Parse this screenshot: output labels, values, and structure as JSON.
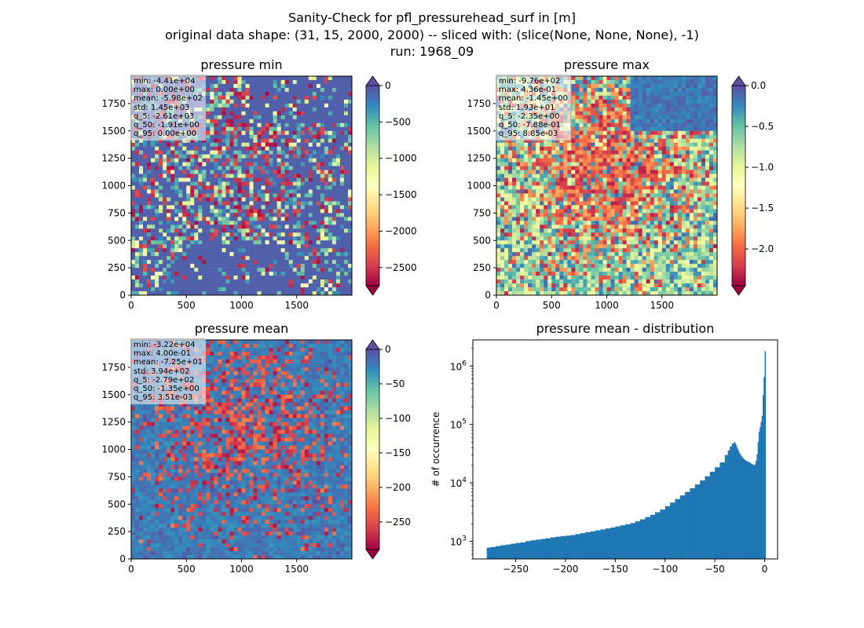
{
  "suptitle": {
    "line1": "Sanity-Check for pfl_pressurehead_surf in [m]",
    "line2": "original data shape: (31, 15, 2000, 2000) -- sliced with: (slice(None, None, None), -1)",
    "line3": "run: 1968_09"
  },
  "colormap": "Spectral",
  "chart_data": [
    {
      "type": "heatmap",
      "title": "pressure min",
      "xlim": [
        0,
        2000
      ],
      "ylim": [
        0,
        2000
      ],
      "xticks": [
        0,
        500,
        1000,
        1500
      ],
      "yticks": [
        0,
        250,
        500,
        750,
        1000,
        1250,
        1500,
        1750
      ],
      "colorbar": {
        "vmin": -2750,
        "vmax": 0,
        "ticks": [
          0,
          -500,
          -1000,
          -1500,
          -2000,
          -2500
        ],
        "tick_labels": [
          "0",
          "−500",
          "−1000",
          "−1500",
          "−2000",
          "−2500"
        ],
        "extend": "both"
      },
      "stats": [
        "min: -4.41e+04",
        "max: 0.00e+00",
        "mean: -5.98e+02",
        "std: 1.45e+03",
        "q_5: -2.61e+03",
        "q_50: -1.91e+00",
        "q_95: 0.00e+00"
      ]
    },
    {
      "type": "heatmap",
      "title": "pressure max",
      "xlim": [
        0,
        2000
      ],
      "ylim": [
        0,
        2000
      ],
      "xticks": [
        0,
        500,
        1000,
        1500
      ],
      "yticks": [
        0,
        250,
        500,
        750,
        1000,
        1250,
        1500,
        1750
      ],
      "colorbar": {
        "vmin": -2.45,
        "vmax": 0,
        "ticks": [
          0,
          -0.5,
          -1.0,
          -1.5,
          -2.0
        ],
        "tick_labels": [
          "0.0",
          "−0.5",
          "−1.0",
          "−1.5",
          "−2.0"
        ],
        "extend": "both"
      },
      "stats": [
        "min: -9.76e+02",
        "max: 4.36e-01",
        "mean: -1.45e+00",
        "std: 1.93e+01",
        "q_5: -2.35e+00",
        "q_50: -7.88e-01",
        "q_95: 8.85e-03"
      ]
    },
    {
      "type": "heatmap",
      "title": "pressure mean",
      "xlim": [
        0,
        2000
      ],
      "ylim": [
        0,
        2000
      ],
      "xticks": [
        0,
        500,
        1000,
        1500
      ],
      "yticks": [
        0,
        250,
        500,
        750,
        1000,
        1250,
        1500,
        1750
      ],
      "colorbar": {
        "vmin": -290,
        "vmax": 0,
        "ticks": [
          0,
          -50,
          -100,
          -150,
          -200,
          -250
        ],
        "tick_labels": [
          "0",
          "−50",
          "−100",
          "−150",
          "−200",
          "−250"
        ],
        "extend": "both"
      },
      "stats": [
        "min: -3.22e+04",
        "max: 4.00e-01",
        "mean: -7.25e+01",
        "std: 3.94e+02",
        "q_5: -2.79e+02",
        "q_50: -1.35e+00",
        "q_95: 3.51e-03"
      ]
    },
    {
      "type": "bar",
      "title": "pressure mean - distribution",
      "ylabel": "# of occurrence",
      "xlabel": "",
      "xlim": [
        -293,
        13
      ],
      "ylim": [
        500,
        2800000
      ],
      "yscale": "log",
      "xticks": [
        -250,
        -200,
        -150,
        -100,
        -50,
        0
      ],
      "xtick_labels": [
        "−250",
        "−200",
        "−150",
        "−100",
        "−50",
        "0"
      ],
      "yticks": [
        1000,
        10000,
        100000,
        1000000
      ],
      "ytick_labels": [
        "10",
        "10",
        "10",
        "10"
      ],
      "ytick_exponents": [
        "3",
        "4",
        "5",
        "6"
      ],
      "bar_color": "#1f77b4",
      "bin_range": [
        -279,
        0
      ],
      "series": [
        {
          "x": [
            -279,
            -275,
            -270,
            -265,
            -260,
            -255,
            -250,
            -245,
            -240,
            -235,
            -230,
            -225,
            -220,
            -215,
            -210,
            -205,
            -200,
            -195,
            -190,
            -185,
            -180,
            -175,
            -170,
            -165,
            -160,
            -155,
            -150,
            -145,
            -140,
            -135,
            -130,
            -125,
            -120,
            -115,
            -110,
            -105,
            -100,
            -95,
            -90,
            -85,
            -80,
            -75,
            -70,
            -65,
            -60,
            -55,
            -50,
            -45,
            -40,
            -37,
            -35,
            -33,
            -31,
            -30,
            -29,
            -28,
            -27,
            -26,
            -25,
            -24,
            -23,
            -22,
            -21,
            -20,
            -19,
            -18,
            -17,
            -16,
            -15,
            -14,
            -13,
            -12,
            -11,
            -10,
            -9,
            -8,
            -7,
            -6,
            -5,
            -4,
            -3,
            -2,
            -1,
            0
          ],
          "y": [
            780,
            800,
            830,
            860,
            880,
            910,
            940,
            960,
            1010,
            1040,
            1070,
            1100,
            1130,
            1170,
            1200,
            1230,
            1250,
            1280,
            1330,
            1380,
            1430,
            1480,
            1540,
            1600,
            1660,
            1720,
            1800,
            1880,
            1960,
            2050,
            2200,
            2380,
            2600,
            2850,
            3150,
            3500,
            4000,
            4600,
            5300,
            6100,
            7000,
            8100,
            9400,
            11000,
            13000,
            15500,
            18500,
            22500,
            30000,
            36000,
            42000,
            47000,
            50000,
            48000,
            44000,
            40000,
            36000,
            33000,
            31000,
            29000,
            27500,
            26500,
            25500,
            24500,
            24000,
            23500,
            23000,
            22500,
            22000,
            21500,
            21000,
            20500,
            20000,
            21000,
            24000,
            31000,
            50000,
            75000,
            90000,
            110000,
            140000,
            320000,
            650000,
            1800000
          ]
        }
      ]
    }
  ]
}
